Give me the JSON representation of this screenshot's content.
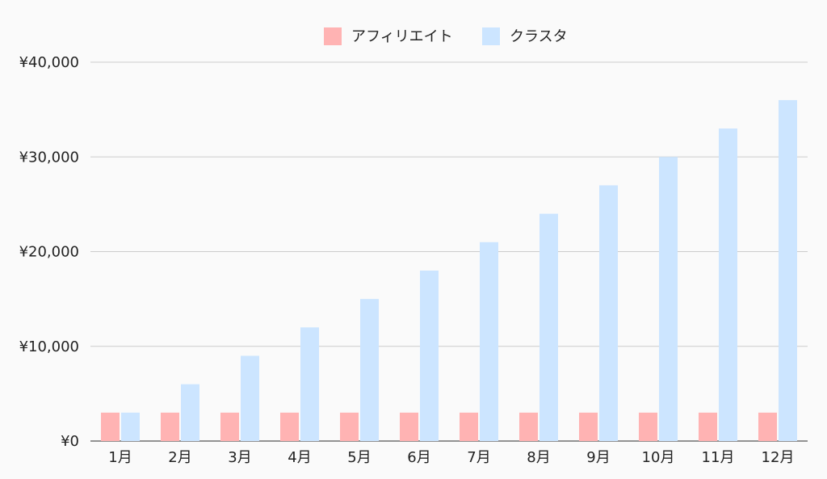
{
  "chart_data": {
    "type": "bar",
    "categories": [
      "1月",
      "2月",
      "3月",
      "4月",
      "5月",
      "6月",
      "7月",
      "8月",
      "9月",
      "10月",
      "11月",
      "12月"
    ],
    "series": [
      {
        "name": "アフィリエイト",
        "color": "#ffb3b3",
        "values": [
          3000,
          3000,
          3000,
          3000,
          3000,
          3000,
          3000,
          3000,
          3000,
          3000,
          3000,
          3000
        ]
      },
      {
        "name": "クラスタ",
        "color": "#cce5ff",
        "values": [
          3000,
          6000,
          9000,
          12000,
          15000,
          18000,
          21000,
          24000,
          27000,
          30000,
          33000,
          36000
        ]
      }
    ],
    "ylim": [
      0,
      40000
    ],
    "yticks": [
      0,
      10000,
      20000,
      30000,
      40000
    ],
    "ytick_labels": [
      "¥0",
      "¥10,000",
      "¥20,000",
      "¥30,000",
      "¥40,000"
    ],
    "grid": true,
    "legend_position": "top-center",
    "title": "",
    "xlabel": "",
    "ylabel": ""
  }
}
